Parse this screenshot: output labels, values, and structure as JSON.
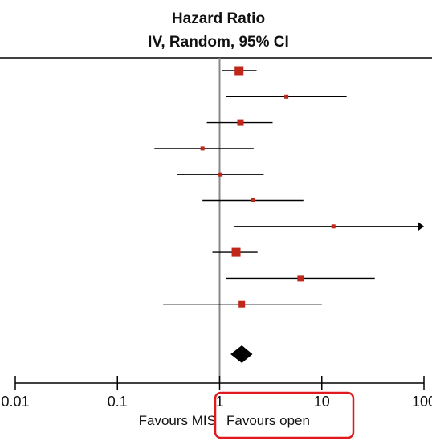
{
  "header": {
    "title": "Hazard Ratio",
    "subtitle": "IV, Random, 95% CI"
  },
  "chart_data": {
    "type": "forest",
    "scale": "log",
    "xlim": [
      0.01,
      100
    ],
    "null_line": 1,
    "ticks": [
      {
        "value": 0.01,
        "label": "0.01"
      },
      {
        "value": 0.1,
        "label": "0.1"
      },
      {
        "value": 1,
        "label": "1"
      },
      {
        "value": 10,
        "label": "10"
      },
      {
        "value": 100,
        "label": "100"
      }
    ],
    "studies": [
      {
        "hr": 1.55,
        "lower": 1.05,
        "upper": 2.3,
        "weight": "large"
      },
      {
        "hr": 4.5,
        "lower": 1.15,
        "upper": 17.5,
        "weight": "small"
      },
      {
        "hr": 1.6,
        "lower": 0.75,
        "upper": 3.3,
        "weight": "medium"
      },
      {
        "hr": 0.68,
        "lower": 0.23,
        "upper": 2.15,
        "weight": "small"
      },
      {
        "hr": 1.02,
        "lower": 0.38,
        "upper": 2.7,
        "weight": "small"
      },
      {
        "hr": 2.1,
        "lower": 0.68,
        "upper": 6.6,
        "weight": "small"
      },
      {
        "hr": 13,
        "lower": 1.4,
        "upper": 100,
        "weight": "small",
        "arrow": "right"
      },
      {
        "hr": 1.45,
        "lower": 0.85,
        "upper": 2.35,
        "weight": "large"
      },
      {
        "hr": 6.2,
        "lower": 1.15,
        "upper": 33,
        "weight": "medium"
      },
      {
        "hr": 1.65,
        "lower": 0.28,
        "upper": 10,
        "weight": "medium"
      }
    ],
    "pooled": {
      "hr": 1.65,
      "lower": 1.28,
      "upper": 2.1
    },
    "favours_left": "Favours MIS",
    "favours_right": "Favours open",
    "colors": {
      "marker": "#c0271a",
      "line": "#000000",
      "null_line": "#888888",
      "diamond": "#000000",
      "highlight": "#e0191c"
    }
  }
}
